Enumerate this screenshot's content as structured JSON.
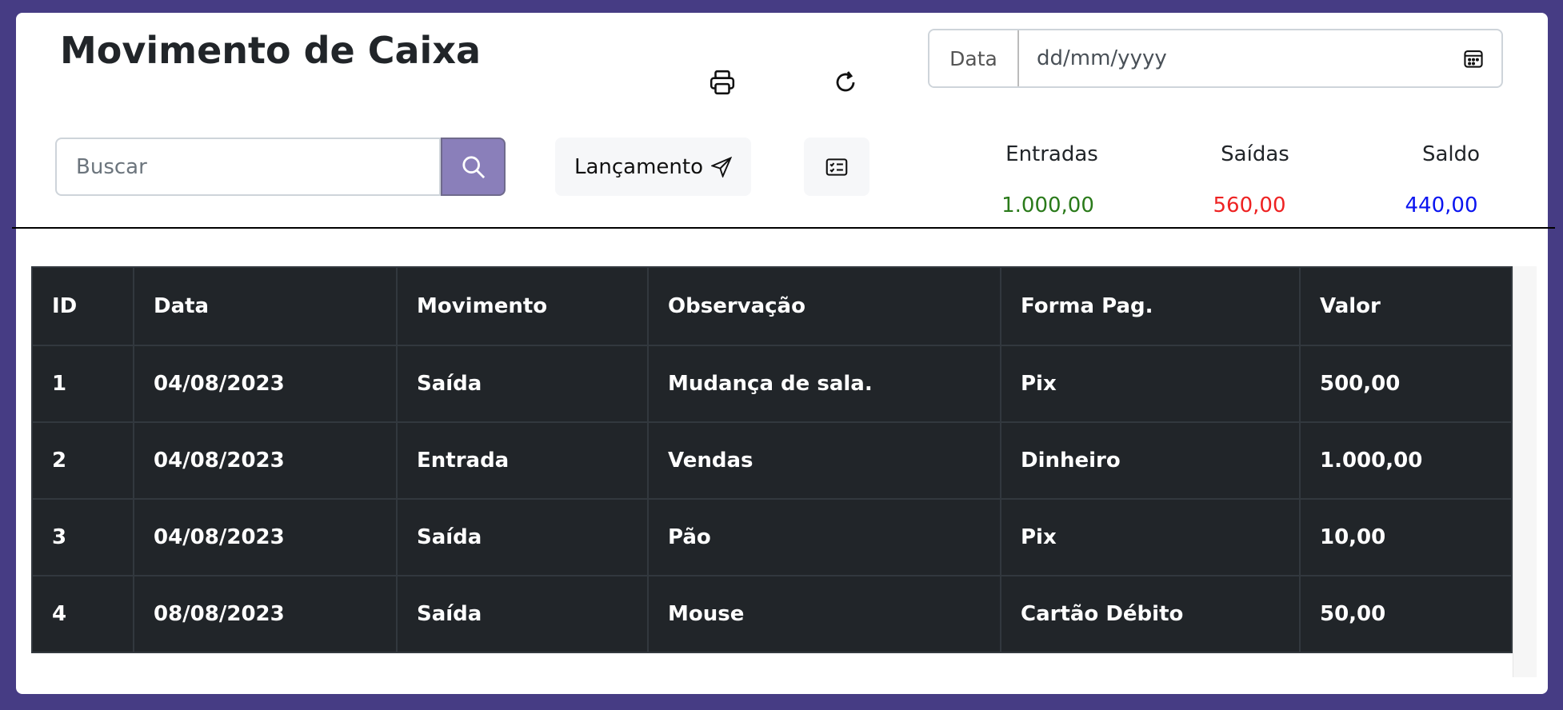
{
  "header": {
    "title": "Movimento de Caixa",
    "print_icon": "printer-icon",
    "refresh_icon": "refresh-icon",
    "date_label": "Data",
    "date_placeholder": "dd/mm/yyyy"
  },
  "toolbar": {
    "search_placeholder": "Buscar",
    "lancamento_label": "Lançamento",
    "list_icon": "checklist-icon"
  },
  "summary": [
    {
      "label": "Entradas",
      "value": "1.000,00",
      "color": "#2a7a1a"
    },
    {
      "label": "Saídas",
      "value": "560,00",
      "color": "#ee2222"
    },
    {
      "label": "Saldo",
      "value": "440,00",
      "color": "#0a14f0"
    }
  ],
  "table": {
    "columns": [
      "ID",
      "Data",
      "Movimento",
      "Observação",
      "Forma Pag.",
      "Valor"
    ],
    "rows": [
      [
        "1",
        "04/08/2023",
        "Saída",
        "Mudança de sala.",
        "Pix",
        "500,00"
      ],
      [
        "2",
        "04/08/2023",
        "Entrada",
        "Vendas",
        "Dinheiro",
        "1.000,00"
      ],
      [
        "3",
        "04/08/2023",
        "Saída",
        "Pão",
        "Pix",
        "10,00"
      ],
      [
        "4",
        "08/08/2023",
        "Saída",
        "Mouse",
        "Cartão Débito",
        "50,00"
      ]
    ]
  }
}
